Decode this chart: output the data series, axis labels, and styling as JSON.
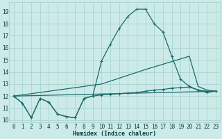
{
  "xlabel": "Humidex (Indice chaleur)",
  "background_color": "#cceae8",
  "grid_color": "#aad4d2",
  "line_color": "#1a6b6b",
  "xlim": [
    -0.5,
    23.5
  ],
  "ylim": [
    9.8,
    19.8
  ],
  "yticks": [
    10,
    11,
    12,
    13,
    14,
    15,
    16,
    17,
    18,
    19
  ],
  "xticks": [
    0,
    1,
    2,
    3,
    4,
    5,
    6,
    7,
    8,
    9,
    10,
    11,
    12,
    13,
    14,
    15,
    16,
    17,
    18,
    19,
    20,
    21,
    22,
    23
  ],
  "lines": [
    {
      "x": [
        0,
        1,
        2,
        3,
        4,
        5,
        6,
        7,
        8,
        9,
        10,
        11,
        12,
        13,
        14,
        15,
        16,
        17,
        18,
        19,
        20,
        21,
        22,
        23
      ],
      "y": [
        12.0,
        11.4,
        10.2,
        11.8,
        11.5,
        10.5,
        10.3,
        10.2,
        11.8,
        12.0,
        14.9,
        16.3,
        17.6,
        18.6,
        19.2,
        19.2,
        18.0,
        17.3,
        15.3,
        13.4,
        12.8,
        12.5,
        12.3,
        12.4
      ],
      "has_markers": true
    },
    {
      "x": [
        0,
        1,
        2,
        3,
        4,
        5,
        6,
        7,
        8,
        9,
        10,
        11,
        12,
        13,
        14,
        15,
        16,
        17,
        18,
        19,
        20,
        21,
        22,
        23
      ],
      "y": [
        12.0,
        11.4,
        10.2,
        11.8,
        11.5,
        10.5,
        10.3,
        10.2,
        11.8,
        12.0,
        12.1,
        12.15,
        12.2,
        12.25,
        12.3,
        12.4,
        12.5,
        12.55,
        12.65,
        12.7,
        12.75,
        12.5,
        12.4,
        12.4
      ],
      "has_markers": true
    },
    {
      "x": [
        0,
        23
      ],
      "y": [
        12.0,
        12.4
      ],
      "has_markers": false
    },
    {
      "x": [
        0,
        10,
        15,
        20,
        21,
        22,
        23
      ],
      "y": [
        12.0,
        13.0,
        14.2,
        15.3,
        12.8,
        12.5,
        12.4
      ],
      "has_markers": false
    }
  ]
}
